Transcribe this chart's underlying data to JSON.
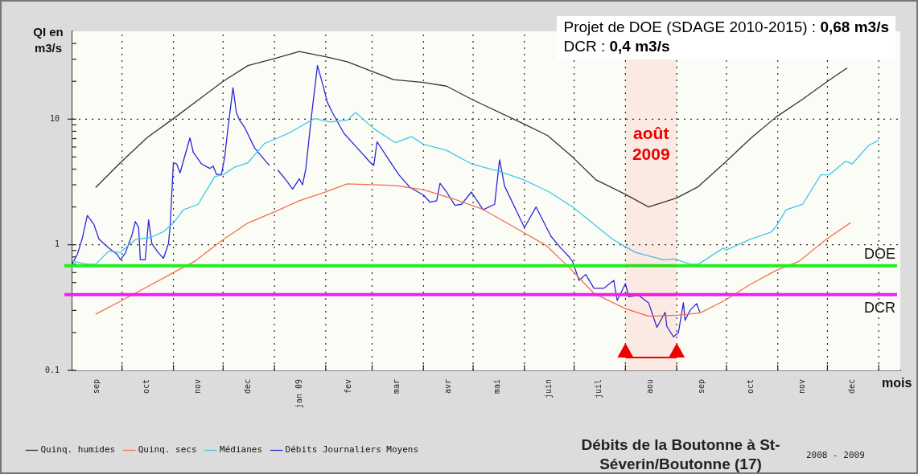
{
  "chart_data": {
    "type": "line",
    "title": "Débits de la Boutonne à St-Séverin/Boutonne (17)",
    "subtitle": "2008 - 2009",
    "ylabel": "QI en m3/s",
    "xlabel": "mois",
    "annotations": [
      "Projet de DOE (SDAGE 2010-2015) : 0,68 m3/s",
      "DCR : 0,4 m3/s"
    ],
    "log": true,
    "grid": true,
    "legend": "bottom left",
    "xlim": [
      "2008-09-01",
      "2010-01-14"
    ],
    "xticks": [
      {
        "value": "2008-09-16",
        "label": "sep"
      },
      {
        "value": "2008-10-01",
        "label": null
      },
      {
        "value": "2008-10-16",
        "label": "oct"
      },
      {
        "value": "2008-11-01",
        "label": null
      },
      {
        "value": "2008-11-16",
        "label": "nov"
      },
      {
        "value": "2008-12-01",
        "label": null
      },
      {
        "value": "2008-12-16",
        "label": "dec"
      },
      {
        "value": "2009-01-01",
        "label": null
      },
      {
        "value": "2009-01-16",
        "label": "jan 09"
      },
      {
        "value": "2009-02-01",
        "label": null
      },
      {
        "value": "2009-02-15",
        "label": "fev"
      },
      {
        "value": "2009-03-01",
        "label": null
      },
      {
        "value": "2009-03-16",
        "label": "mar"
      },
      {
        "value": "2009-04-01",
        "label": null
      },
      {
        "value": "2009-04-16",
        "label": "avr"
      },
      {
        "value": "2009-05-01",
        "label": null
      },
      {
        "value": "2009-05-16",
        "label": "mai"
      },
      {
        "value": "2009-06-01",
        "label": null
      },
      {
        "value": "2009-06-16",
        "label": "juin"
      },
      {
        "value": "2009-07-01",
        "label": null
      },
      {
        "value": "2009-07-16",
        "label": "juil"
      },
      {
        "value": "2009-08-01",
        "label": null
      },
      {
        "value": "2009-08-16",
        "label": "aou"
      },
      {
        "value": "2009-09-01",
        "label": null
      },
      {
        "value": "2009-09-16",
        "label": "sep"
      },
      {
        "value": "2009-10-01",
        "label": null
      },
      {
        "value": "2009-10-16",
        "label": "oct"
      },
      {
        "value": "2009-11-01",
        "label": null
      },
      {
        "value": "2009-11-16",
        "label": "nov"
      },
      {
        "value": "2009-12-01",
        "label": null
      },
      {
        "value": "2009-12-16",
        "label": "dec"
      },
      {
        "value": "2010-01-01",
        "label": null
      }
    ],
    "ylim": [
      0.1,
      50
    ],
    "yticks": [
      0.1,
      {
        "value": 0.2,
        "label": null
      },
      {
        "value": 0.3,
        "label": null
      },
      {
        "value": 0.4,
        "label": null
      },
      {
        "value": 0.5,
        "label": null
      },
      {
        "value": 0.6,
        "label": null
      },
      {
        "value": 0.7,
        "label": null
      },
      {
        "value": 0.8,
        "label": null
      },
      {
        "value": 0.9,
        "label": null
      },
      1,
      {
        "value": 2,
        "label": null
      },
      {
        "value": 3,
        "label": null
      },
      {
        "value": 4,
        "label": null
      },
      {
        "value": 5,
        "label": null
      },
      {
        "value": 6,
        "label": null
      },
      {
        "value": 7,
        "label": null
      },
      {
        "value": 8,
        "label": null
      },
      {
        "value": 9,
        "label": null
      },
      10,
      {
        "value": 20,
        "label": null
      },
      {
        "value": 30,
        "label": null
      },
      {
        "value": 40,
        "label": null
      }
    ],
    "ref_lines": [
      {
        "axis": "y",
        "value": 0.68,
        "label": "DOE",
        "color": "#22ee22"
      },
      {
        "axis": "y",
        "value": 0.4,
        "label": "DCR",
        "color": "#ee22ee"
      }
    ],
    "bands": [
      {
        "axis": "x",
        "from": "2009-08-01",
        "to": "2009-09-01",
        "label": "août 2009",
        "color": "#ee0000"
      }
    ],
    "series": [
      {
        "name": "Quinq. humides",
        "color": "#333333",
        "x": [
          "2008-09-15",
          "2008-09-30",
          "2008-10-16",
          "2008-11-01",
          "2008-12-01",
          "2008-12-16",
          "2009-01-02",
          "2009-01-16",
          "2009-02-01",
          "2009-02-14",
          "2009-03-01",
          "2009-03-14",
          "2009-04-01",
          "2009-04-15",
          "2009-04-30",
          "2009-06-01",
          "2009-06-15",
          "2009-06-30",
          "2009-07-14",
          "2009-07-31",
          "2009-08-15",
          "2009-09-01",
          "2009-09-14",
          "2009-09-30",
          "2009-10-16",
          "2009-10-31",
          "2009-11-16",
          "2009-12-01",
          "2009-12-13"
        ],
        "values": [
          2.85,
          4.5,
          7.1,
          10.1,
          20,
          26.7,
          30.6,
          34.5,
          31.4,
          28.6,
          24,
          20.6,
          19.6,
          18.3,
          14.4,
          9.1,
          7.4,
          5.0,
          3.3,
          2.56,
          2.0,
          2.36,
          2.9,
          4.5,
          7.1,
          10.4,
          14.4,
          20,
          25.6
        ]
      },
      {
        "name": "Quinq. secs",
        "color": "#f07050",
        "x": [
          "2008-09-15",
          "2008-09-30",
          "2008-11-01",
          "2008-11-14",
          "2008-12-01",
          "2008-12-16",
          "2009-01-02",
          "2009-01-16",
          "2009-02-01",
          "2009-02-14",
          "2009-03-15",
          "2009-04-01",
          "2009-04-20",
          "2009-05-07",
          "2009-05-25",
          "2009-06-14",
          "2009-06-28",
          "2009-07-13",
          "2009-08-01",
          "2009-08-15",
          "2009-09-01",
          "2009-09-15",
          "2009-09-30",
          "2009-10-15",
          "2009-10-31",
          "2009-11-14",
          "2009-11-30",
          "2009-12-15"
        ],
        "values": [
          0.28,
          0.355,
          0.6,
          0.74,
          1.1,
          1.49,
          1.85,
          2.24,
          2.63,
          3.05,
          2.96,
          2.74,
          2.3,
          1.91,
          1.4,
          0.99,
          0.66,
          0.41,
          0.31,
          0.27,
          0.275,
          0.286,
          0.36,
          0.48,
          0.625,
          0.74,
          1.1,
          1.5
        ]
      },
      {
        "name": "Médianes",
        "color": "#40c8e8",
        "x": [
          "2008-09-01",
          "2008-09-10",
          "2008-09-15",
          "2008-09-23",
          "2008-09-30",
          "2008-10-09",
          "2008-10-18",
          "2008-10-26",
          "2008-11-01",
          "2008-11-07",
          "2008-11-16",
          "2008-11-26",
          "2008-12-01",
          "2008-12-08",
          "2008-12-16",
          "2008-12-26",
          "2009-01-01",
          "2009-01-11",
          "2009-01-25",
          "2009-02-04",
          "2009-02-14",
          "2009-02-19",
          "2009-03-02",
          "2009-03-15",
          "2009-03-25",
          "2009-04-01",
          "2009-04-15",
          "2009-04-30",
          "2009-05-17",
          "2009-06-01",
          "2009-06-16",
          "2009-06-30",
          "2009-07-11",
          "2009-07-24",
          "2009-08-07",
          "2009-08-24",
          "2009-08-31",
          "2009-09-09",
          "2009-09-14",
          "2009-09-29",
          "2009-10-01",
          "2009-10-15",
          "2009-10-28",
          "2009-10-31",
          "2009-11-06",
          "2009-11-16",
          "2009-11-27",
          "2009-12-02",
          "2009-12-12",
          "2009-12-16",
          "2009-12-26",
          "2010-01-01"
        ],
        "values": [
          0.74,
          0.7,
          0.7,
          0.89,
          0.87,
          1.1,
          1.14,
          1.27,
          1.49,
          1.9,
          2.1,
          3.5,
          3.6,
          4.15,
          4.5,
          6.4,
          6.9,
          7.9,
          10.1,
          9.5,
          9.8,
          11.3,
          8.4,
          6.5,
          7.25,
          6.3,
          5.65,
          4.4,
          3.84,
          3.27,
          2.63,
          2.0,
          1.53,
          1.11,
          0.87,
          0.76,
          0.77,
          0.7,
          0.7,
          0.94,
          0.91,
          1.1,
          1.26,
          1.4,
          1.9,
          2.1,
          3.6,
          3.6,
          4.63,
          4.4,
          6.2,
          6.76
        ]
      },
      {
        "name": "Débits Journaliers Moyens",
        "color": "#2828d8",
        "x": [
          "2008-09-01",
          "2008-09-04",
          "2008-09-07",
          "2008-09-10",
          "2008-09-14",
          "2008-09-17",
          "2008-09-23",
          "2008-09-28",
          "2008-09-30",
          "2008-10-03",
          "2008-10-07",
          "2008-10-09",
          "2008-10-11",
          "2008-10-12",
          "2008-10-15",
          "2008-10-17",
          "2008-10-19",
          "2008-10-23",
          "2008-10-26",
          "2008-10-29",
          "2008-10-30",
          "2008-11-01",
          "2008-11-03",
          "2008-11-05",
          "2008-11-11",
          "2008-11-13",
          "2008-11-18",
          "2008-11-23",
          "2008-11-25",
          "2008-11-27",
          "2008-11-30",
          "2008-12-02",
          "2008-12-04",
          "2008-12-07",
          "2008-12-09",
          "2008-12-11",
          "2008-12-14",
          "2008-12-20",
          "2008-12-26",
          "2008-12-29",
          "2008-12-31",
          "2009-01-03",
          "2009-01-08",
          "2009-01-12",
          "2009-01-16",
          "2009-01-18",
          "2009-01-20",
          "2009-01-23",
          "2009-01-27",
          "2009-01-30",
          "2009-02-02",
          "2009-02-05",
          "2009-02-12",
          "2009-02-20",
          "2009-02-28",
          "2009-03-02",
          "2009-03-04",
          "2009-03-10",
          "2009-03-17",
          "2009-03-24",
          "2009-04-01",
          "2009-04-05",
          "2009-04-09",
          "2009-04-11",
          "2009-04-15",
          "2009-04-20",
          "2009-04-24",
          "2009-04-30",
          "2009-05-07",
          "2009-05-14",
          "2009-05-17",
          "2009-05-20",
          "2009-06-01",
          "2009-06-08",
          "2009-06-17",
          "2009-06-23",
          "2009-06-28",
          "2009-06-30",
          "2009-07-04",
          "2009-07-08",
          "2009-07-13",
          "2009-07-19",
          "2009-07-25",
          "2009-07-27",
          "2009-08-01",
          "2009-08-03",
          "2009-08-09",
          "2009-08-15",
          "2009-08-20",
          "2009-08-25",
          "2009-08-26",
          "2009-08-30",
          "2009-09-02",
          "2009-09-05",
          "2009-09-06",
          "2009-09-09",
          "2009-09-13",
          "2009-09-15"
        ],
        "values": [
          0.71,
          0.84,
          1.13,
          1.71,
          1.45,
          1.11,
          0.94,
          0.84,
          0.76,
          0.86,
          1.2,
          1.53,
          1.37,
          0.76,
          0.76,
          1.58,
          1.02,
          0.86,
          0.78,
          1.02,
          1.4,
          4.5,
          4.4,
          3.73,
          7.1,
          5.45,
          4.4,
          4.05,
          4.23,
          3.63,
          3.63,
          5.0,
          8.6,
          17.8,
          11.3,
          9.8,
          8.6,
          5.9,
          4.75,
          4.27,
          null,
          3.94,
          3.27,
          2.77,
          3.35,
          3.0,
          4.05,
          9.6,
          26.7,
          19.3,
          13.6,
          11.3,
          7.7,
          5.9,
          4.5,
          4.27,
          6.6,
          5.0,
          3.63,
          2.85,
          2.49,
          2.18,
          2.24,
          3.09,
          2.63,
          2.06,
          2.1,
          2.63,
          1.9,
          2.1,
          4.75,
          2.93,
          1.37,
          2.0,
          1.17,
          0.94,
          0.8,
          0.74,
          0.52,
          0.58,
          0.45,
          0.45,
          0.52,
          0.36,
          0.49,
          0.385,
          0.395,
          0.345,
          0.22,
          0.29,
          0.224,
          0.185,
          0.2,
          0.345,
          0.25,
          0.3,
          0.34,
          0.29
        ]
      }
    ]
  }
}
